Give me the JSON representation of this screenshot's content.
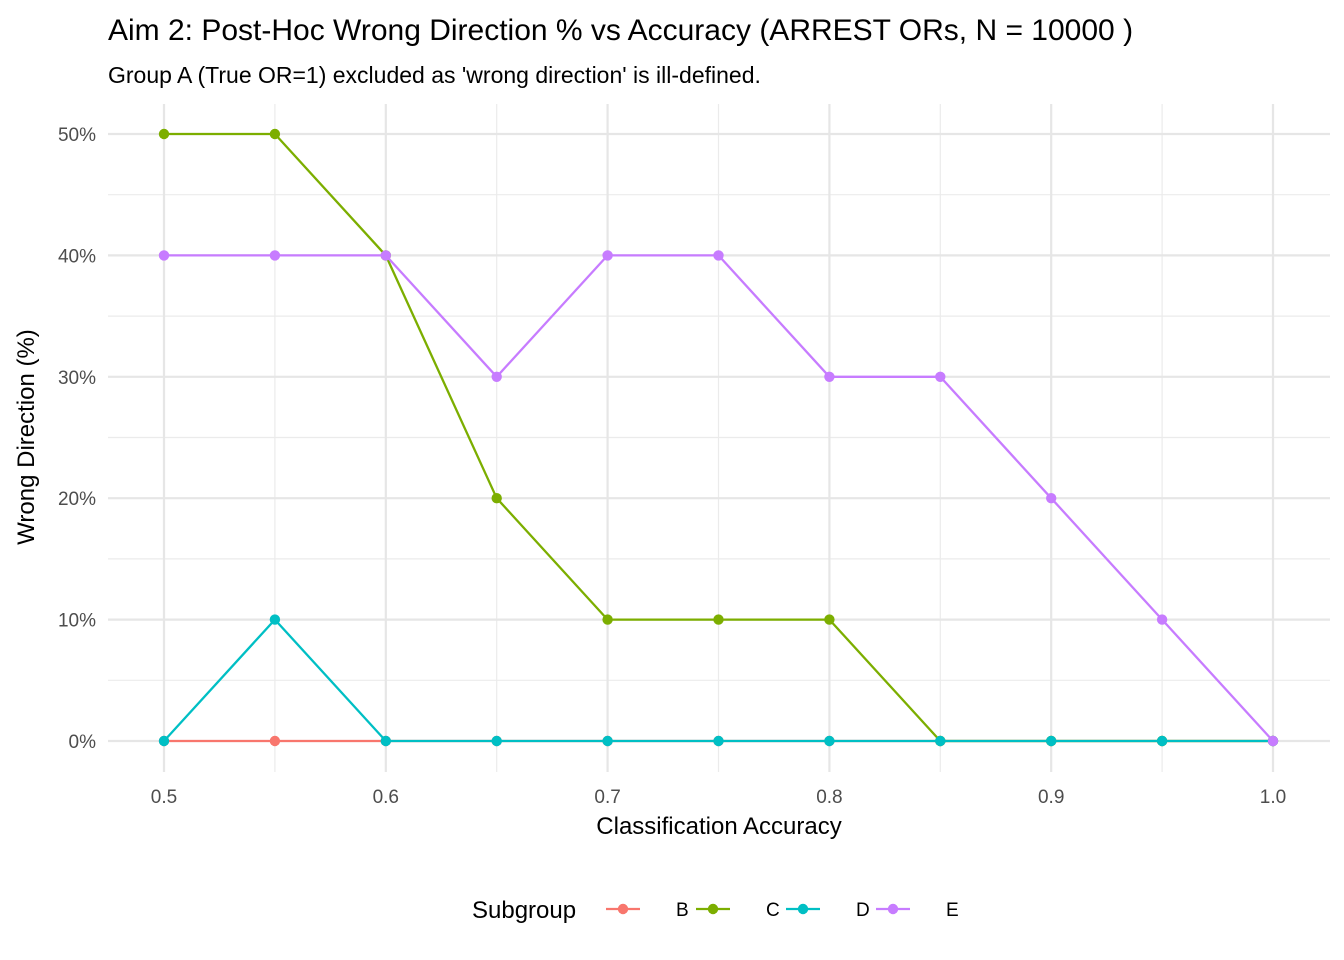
{
  "chart_data": {
    "type": "line",
    "title": "Aim 2: Post-Hoc Wrong Direction % vs Accuracy (ARREST ORs, N = 10000 )",
    "subtitle": "Group A (True OR=1) excluded as 'wrong direction' is ill-defined.",
    "xlabel": "Classification Accuracy",
    "ylabel": "Wrong Direction (%)",
    "x": [
      0.5,
      0.55,
      0.6,
      0.65,
      0.7,
      0.75,
      0.8,
      0.85,
      0.9,
      0.95,
      1.0
    ],
    "xlim": [
      0.5,
      1.0
    ],
    "ylim": [
      0,
      50
    ],
    "x_ticks": [
      0.5,
      0.6,
      0.7,
      0.8,
      0.9,
      1.0
    ],
    "x_tick_labels": [
      "0.5",
      "0.6",
      "0.7",
      "0.8",
      "0.9",
      "1.0"
    ],
    "y_ticks": [
      0,
      10,
      20,
      30,
      40,
      50
    ],
    "y_tick_labels": [
      "0%",
      "10%",
      "20%",
      "30%",
      "40%",
      "50%"
    ],
    "grid": true,
    "legend_title": "Subgroup",
    "legend_position": "bottom",
    "series": [
      {
        "name": "B",
        "color": "#F8766D",
        "values": [
          0,
          0,
          0,
          0,
          0,
          0,
          0,
          0,
          0,
          0,
          0
        ]
      },
      {
        "name": "C",
        "color": "#7CAE00",
        "values": [
          50,
          50,
          40,
          20,
          10,
          10,
          10,
          0,
          0,
          0,
          0
        ]
      },
      {
        "name": "D",
        "color": "#00BFC4",
        "values": [
          0,
          10,
          0,
          0,
          0,
          0,
          0,
          0,
          0,
          0,
          0
        ]
      },
      {
        "name": "E",
        "color": "#C77CFF",
        "values": [
          40,
          40,
          40,
          30,
          40,
          40,
          30,
          30,
          20,
          10,
          0
        ]
      }
    ]
  }
}
